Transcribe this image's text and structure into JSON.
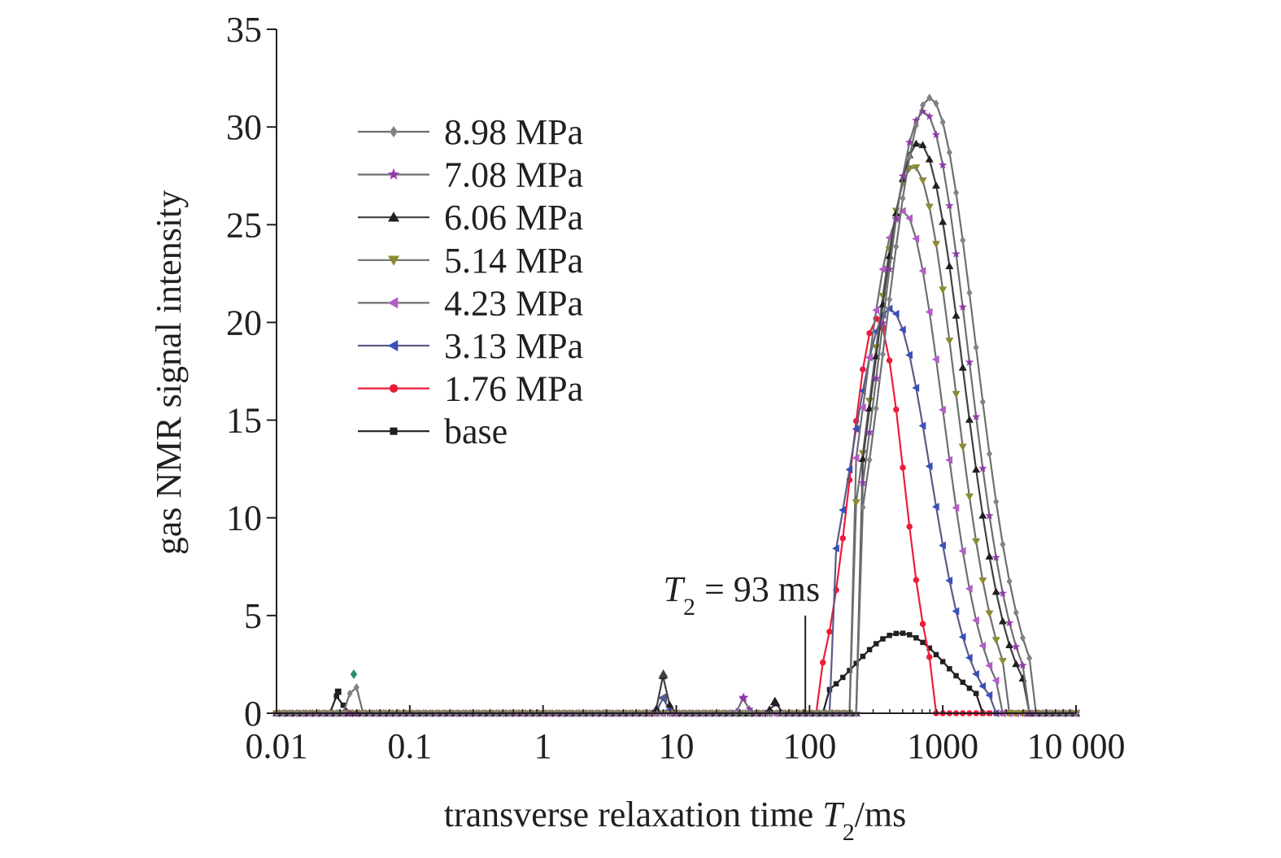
{
  "chart_data": {
    "type": "line",
    "title": "",
    "xlabel": {
      "prefix": "transverse relaxation time ",
      "var": "T",
      "sub": "2",
      "suffix": "/ms"
    },
    "ylabel": "gas NMR signal intensity",
    "xscale": "log",
    "xlim": [
      0.01,
      10000
    ],
    "ylim": [
      0,
      35
    ],
    "grid": false,
    "legend_position": "upper-left",
    "x_ticks": [
      {
        "value": 0.01,
        "label": "0.01"
      },
      {
        "value": 0.1,
        "label": "0.1"
      },
      {
        "value": 1,
        "label": "1"
      },
      {
        "value": 10,
        "label": "10"
      },
      {
        "value": 100,
        "label": "100"
      },
      {
        "value": 1000,
        "label": "1000"
      },
      {
        "value": 10000,
        "label": "10 000"
      }
    ],
    "y_ticks": [
      {
        "value": 0,
        "label": "0"
      },
      {
        "value": 5,
        "label": "5"
      },
      {
        "value": 10,
        "label": "10"
      },
      {
        "value": 15,
        "label": "15"
      },
      {
        "value": 20,
        "label": "20"
      },
      {
        "value": 25,
        "label": "25"
      },
      {
        "value": 30,
        "label": "30"
      },
      {
        "value": 35,
        "label": "35"
      }
    ],
    "annotation": {
      "var": "T",
      "sub": "2",
      "text": " = 93 ms",
      "x": 93,
      "y_top": 5
    },
    "series": [
      {
        "name": "8.98 MPa",
        "color": "#6d6e71",
        "marker": "diamond",
        "markerColor": "#808285",
        "peak_x": 800,
        "peak_y": 31.5,
        "sigma": 0.34,
        "start": 250,
        "end": 4500,
        "blips": [
          {
            "x": 0.038,
            "y": 2.0,
            "color": "#2e8b6f"
          }
        ]
      },
      {
        "name": "7.08 MPa",
        "color": "#6d6e71",
        "marker": "star",
        "markerColor": "#8e3aa6",
        "peak_x": 720,
        "peak_y": 30.8,
        "sigma": 0.33,
        "start": 240,
        "end": 4200,
        "blips": [
          {
            "x": 32,
            "y": 0.8,
            "color": "#8e3aa6"
          }
        ]
      },
      {
        "name": "6.06 MPa",
        "color": "#414042",
        "marker": "triangle-up",
        "markerColor": "#231f20",
        "peak_x": 660,
        "peak_y": 29.2,
        "sigma": 0.33,
        "start": 230,
        "end": 4000,
        "blips": [
          {
            "x": 8,
            "y": 2.0,
            "color": "#414042"
          },
          {
            "x": 55,
            "y": 0.6,
            "color": "#231f20"
          }
        ]
      },
      {
        "name": "5.14 MPa",
        "color": "#6d6e71",
        "marker": "triangle-down",
        "markerColor": "#8a8a32",
        "peak_x": 600,
        "peak_y": 28.0,
        "sigma": 0.31,
        "start": 220,
        "end": 3000,
        "blips": []
      },
      {
        "name": "4.23 MPa",
        "color": "#6d6e71",
        "marker": "triangle-left",
        "markerColor": "#b45cc8",
        "peak_x": 500,
        "peak_y": 25.7,
        "sigma": 0.3,
        "start": 200,
        "end": 2600,
        "blips": []
      },
      {
        "name": "3.13 MPa",
        "color": "#5a5a8a",
        "marker": "triangle-left",
        "markerColor": "#3a4fb8",
        "peak_x": 400,
        "peak_y": 20.7,
        "sigma": 0.3,
        "start": 150,
        "end": 2500,
        "blips": [
          {
            "x": 8,
            "y": 0.8,
            "color": "#5a5a8a"
          }
        ]
      },
      {
        "name": "1.76 MPa",
        "color": "#ec1c3a",
        "marker": "circle",
        "markerColor": "#ec1c3a",
        "peak_x": 320,
        "peak_y": 20.2,
        "sigma": 0.2,
        "start": 120,
        "end": 800,
        "blips": []
      },
      {
        "name": "base",
        "color": "#231f20",
        "marker": "square",
        "markerColor": "#231f20",
        "peak_x": 480,
        "peak_y": 4.1,
        "sigma": 0.34,
        "start": 130,
        "end": 1900,
        "blips": [
          {
            "x": 0.029,
            "y": 1.1,
            "color": "#231f20"
          }
        ]
      }
    ]
  }
}
